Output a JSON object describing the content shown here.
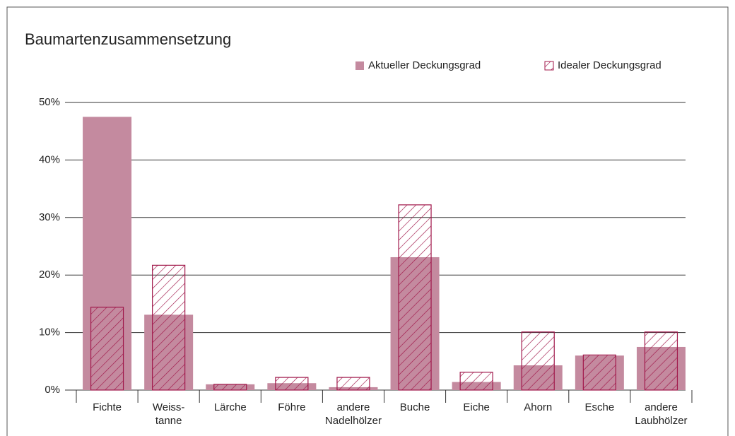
{
  "chart_data": {
    "type": "bar",
    "title": "Baumartenzusammensetzung",
    "categories": [
      "Fichte",
      "Weiss-\ntanne",
      "Lärche",
      "Föhre",
      "andere\nNadelhölzer",
      "Buche",
      "Eiche",
      "Ahorn",
      "Esche",
      "andere\nLaubhölzer"
    ],
    "series": [
      {
        "name": "Aktueller Deckungsgrad",
        "color": "#c48a9f",
        "style": "filled",
        "values": [
          47.5,
          13.1,
          1.0,
          1.2,
          0.5,
          23.1,
          1.4,
          4.3,
          6.0,
          7.5
        ]
      },
      {
        "name": "Idealer Deckungsgrad",
        "color": "#a0174a",
        "style": "hatched",
        "values": [
          14.4,
          21.7,
          1.0,
          2.2,
          2.2,
          32.2,
          3.1,
          10.1,
          6.1,
          10.1
        ]
      }
    ],
    "ylim": [
      0,
      50
    ],
    "yticks": [
      {
        "value": 0,
        "label": "0%"
      },
      {
        "value": 10,
        "label": "10%"
      },
      {
        "value": 20,
        "label": "20%"
      },
      {
        "value": 30,
        "label": "30%"
      },
      {
        "value": 40,
        "label": "40%"
      },
      {
        "value": 50,
        "label": "50%"
      }
    ],
    "grid": true,
    "legend": "top-right"
  }
}
